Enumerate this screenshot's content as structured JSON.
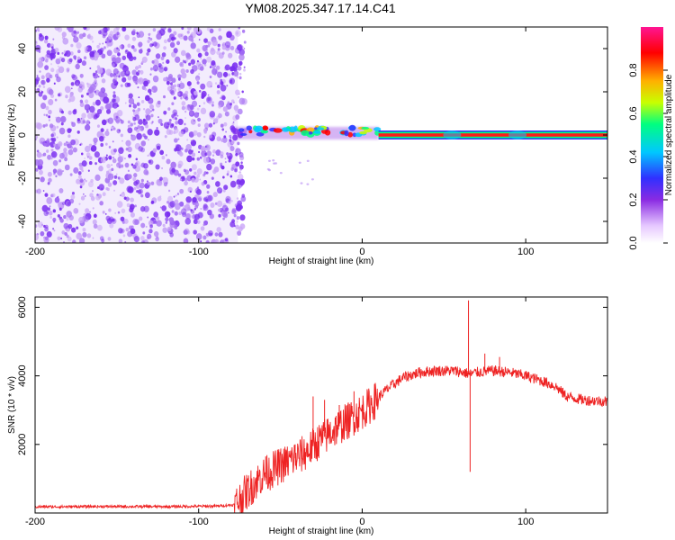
{
  "title": "YM08.2025.347.17.14.C41",
  "colors": {
    "snr_line": "#ee2222",
    "axis": "#000000",
    "cloud": "#7a2ef0",
    "cloud_light": "#c9a5f7"
  },
  "chart_data": [
    {
      "type": "heatmap",
      "name": "spectrogram",
      "xlabel": "Height of straight line (km)",
      "ylabel": "Frequency (Hz)",
      "xlim": [
        -200,
        150
      ],
      "ylim": [
        -50,
        50
      ],
      "xticks": [
        -200,
        -100,
        0,
        100
      ],
      "yticks": [
        -40,
        -20,
        0,
        20,
        40
      ],
      "noise_region_x": [
        -200,
        -76
      ],
      "ridge": {
        "frequency_hz": 0,
        "start_x": -78,
        "strong_from_x": 10,
        "to_x": 150,
        "bursts_x": [
          55,
          95
        ]
      },
      "colorbar": {
        "label": "Normalized spectral amplitude",
        "range": [
          0.0,
          1.0
        ],
        "ticks": [
          "0.0",
          "0.2",
          "0.4",
          "0.6",
          "0.8"
        ],
        "tick_values": [
          0.0,
          0.2,
          0.4,
          0.6,
          0.8
        ],
        "stops": [
          {
            "value": 0.0,
            "color": "#ffffff"
          },
          {
            "value": 0.08,
            "color": "#e6c8ff"
          },
          {
            "value": 0.2,
            "color": "#8a2be2"
          },
          {
            "value": 0.3,
            "color": "#3030ff"
          },
          {
            "value": 0.42,
            "color": "#00c8ff"
          },
          {
            "value": 0.55,
            "color": "#00ff80"
          },
          {
            "value": 0.65,
            "color": "#c8ff00"
          },
          {
            "value": 0.75,
            "color": "#ffb000"
          },
          {
            "value": 0.88,
            "color": "#ff0000"
          },
          {
            "value": 1.0,
            "color": "#ff1493"
          }
        ]
      }
    },
    {
      "type": "line",
      "name": "snr",
      "xlabel": "Height of straight line (km)",
      "ylabel": "SNR (10 * v/v)",
      "xlim": [
        -200,
        150
      ],
      "ylim": [
        0,
        6300
      ],
      "xticks": [
        -200,
        -100,
        0,
        100
      ],
      "yticks": [
        2000,
        4000,
        6000
      ],
      "series": [
        {
          "name": "SNR",
          "x": [
            -200,
            -160,
            -120,
            -90,
            -78,
            -70,
            -62,
            -55,
            -45,
            -35,
            -25,
            -15,
            -5,
            5,
            15,
            25,
            35,
            45,
            55,
            62,
            66,
            70,
            80,
            90,
            100,
            110,
            118,
            125,
            135,
            150
          ],
          "y": [
            180,
            190,
            185,
            200,
            240,
            650,
            1050,
            1250,
            1500,
            1750,
            2150,
            2500,
            2800,
            3150,
            3600,
            3950,
            4100,
            4150,
            4150,
            4100,
            4050,
            4100,
            4150,
            4100,
            4000,
            3850,
            3700,
            3400,
            3300,
            3250
          ]
        }
      ],
      "spikes": [
        {
          "x": -59,
          "y": 1650
        },
        {
          "x": -41,
          "y": 2000
        },
        {
          "x": -30,
          "y": 3400
        },
        {
          "x": -23,
          "y": 3300
        },
        {
          "x": -14,
          "y": 3150
        },
        {
          "x": -5,
          "y": 3550
        },
        {
          "x": 65,
          "y": 6200
        },
        {
          "x": 66,
          "y": 1200
        },
        {
          "x": 75,
          "y": 4650
        },
        {
          "x": 84,
          "y": 4550
        }
      ]
    }
  ]
}
